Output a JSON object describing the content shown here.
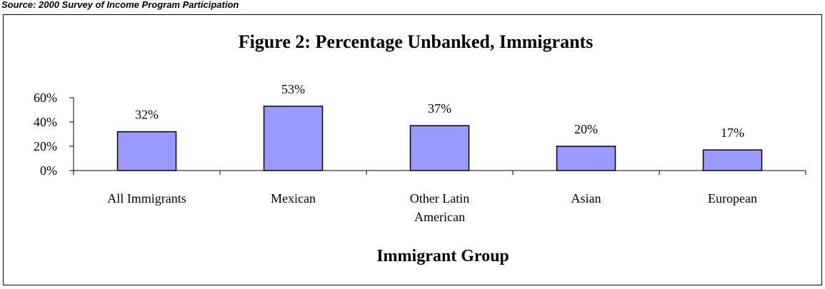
{
  "source_text": "Source: 2000 Survey of Income Program Participation",
  "chart_data": {
    "type": "bar",
    "title": "Figure 2: Percentage Unbanked, Immigrants",
    "xlabel": "Immigrant Group",
    "ylabel": "",
    "categories": [
      [
        "All Immigrants"
      ],
      [
        "Mexican"
      ],
      [
        "Other Latin",
        "American"
      ],
      [
        "Asian"
      ],
      [
        "European"
      ]
    ],
    "values": [
      32,
      53,
      37,
      20,
      17
    ],
    "data_labels": [
      "32%",
      "53%",
      "37%",
      "20%",
      "17%"
    ],
    "ylim": [
      0,
      60
    ],
    "yticks": [
      0,
      20,
      40,
      60
    ],
    "ytick_labels": [
      "0%",
      "20%",
      "40%",
      "60%"
    ],
    "grid": false,
    "legend": "none",
    "bar_color": "#9999ff",
    "bar_edge_color": "#000000"
  }
}
